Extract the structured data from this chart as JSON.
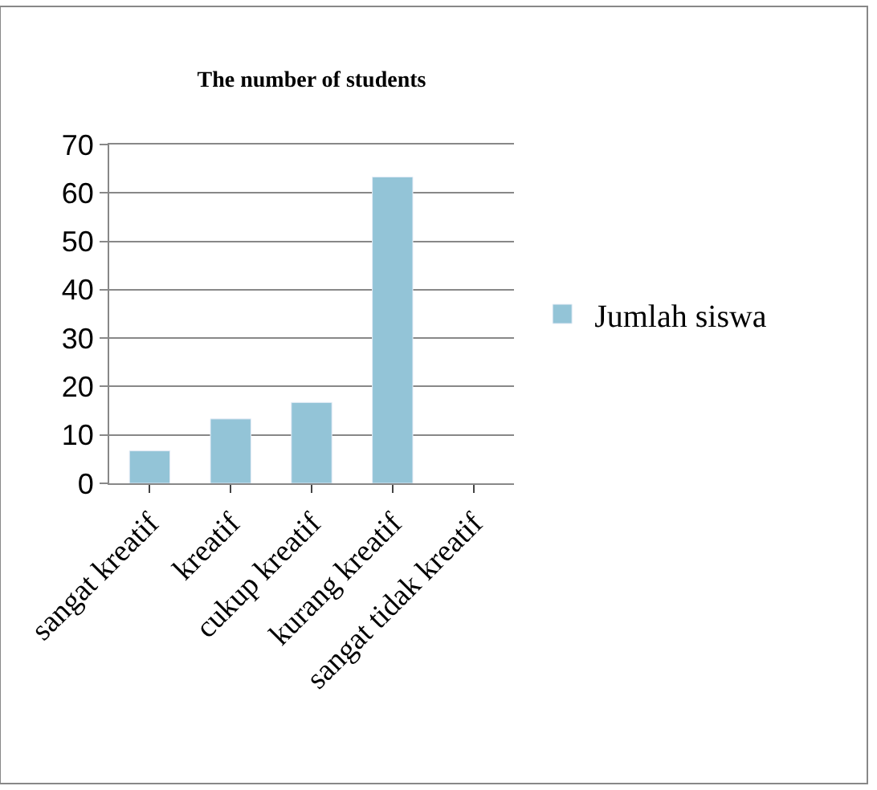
{
  "chart_data": {
    "type": "bar",
    "title": "The number of students",
    "categories": [
      "sangat kreatif",
      "kreatif",
      "cukup kreatif",
      "kurang kreatif",
      "sangat tidak kreatif"
    ],
    "series": [
      {
        "name": "Jumlah siswa",
        "color": "#93c4d7",
        "values": [
          6.7,
          13.3,
          16.7,
          63.3,
          null
        ]
      }
    ],
    "ylim": [
      0,
      70
    ],
    "yticks": [
      0,
      10,
      20,
      30,
      40,
      50,
      60,
      70
    ],
    "grid": "y",
    "legend": "right"
  }
}
